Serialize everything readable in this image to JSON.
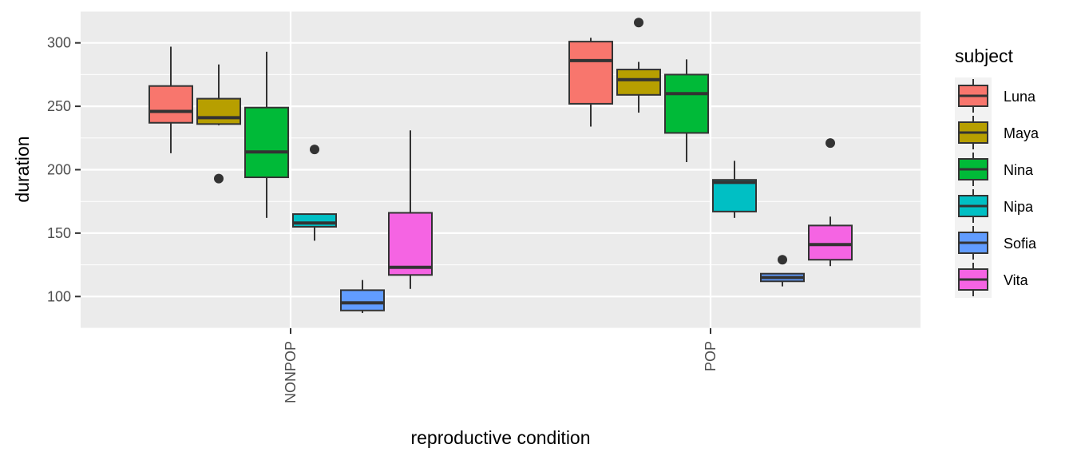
{
  "chart_data": {
    "type": "boxplot",
    "xlabel": "reproductive condition",
    "ylabel": "duration",
    "ylim": [
      75,
      325
    ],
    "yticks": [
      100,
      150,
      200,
      250,
      300
    ],
    "categories": [
      "NONPOP",
      "POP"
    ],
    "legend": {
      "title": "subject",
      "position": "right"
    },
    "series": [
      {
        "name": "Luna",
        "color": "#F8766D",
        "boxes": [
          {
            "category": "NONPOP",
            "lower_whisker": 213,
            "q1": 237,
            "median": 246,
            "q3": 266,
            "upper_whisker": 297,
            "outliers": []
          },
          {
            "category": "POP",
            "lower_whisker": 234,
            "q1": 252,
            "median": 286,
            "q3": 301,
            "upper_whisker": 304,
            "outliers": []
          }
        ]
      },
      {
        "name": "Maya",
        "color": "#B79F00",
        "boxes": [
          {
            "category": "NONPOP",
            "lower_whisker": 235,
            "q1": 236,
            "median": 241,
            "q3": 256,
            "upper_whisker": 283,
            "outliers": [
              193
            ]
          },
          {
            "category": "POP",
            "lower_whisker": 245,
            "q1": 259,
            "median": 271,
            "q3": 279,
            "upper_whisker": 285,
            "outliers": [
              316
            ]
          }
        ]
      },
      {
        "name": "Nina",
        "color": "#00BA38",
        "boxes": [
          {
            "category": "NONPOP",
            "lower_whisker": 162,
            "q1": 194,
            "median": 214,
            "q3": 249,
            "upper_whisker": 293,
            "outliers": []
          },
          {
            "category": "POP",
            "lower_whisker": 206,
            "q1": 229,
            "median": 260,
            "q3": 275,
            "upper_whisker": 287,
            "outliers": []
          }
        ]
      },
      {
        "name": "Nipa",
        "color": "#00BFC4",
        "boxes": [
          {
            "category": "NONPOP",
            "lower_whisker": 144,
            "q1": 155,
            "median": 158,
            "q3": 165,
            "upper_whisker": 165,
            "outliers": [
              216
            ]
          },
          {
            "category": "POP",
            "lower_whisker": 162,
            "q1": 167,
            "median": 190,
            "q3": 192,
            "upper_whisker": 207,
            "outliers": []
          }
        ]
      },
      {
        "name": "Sofia",
        "color": "#619CFF",
        "boxes": [
          {
            "category": "NONPOP",
            "lower_whisker": 87,
            "q1": 89,
            "median": 95,
            "q3": 105,
            "upper_whisker": 113,
            "outliers": []
          },
          {
            "category": "POP",
            "lower_whisker": 108,
            "q1": 112,
            "median": 115,
            "q3": 118,
            "upper_whisker": 118,
            "outliers": [
              129
            ]
          }
        ]
      },
      {
        "name": "Vita",
        "color": "#F564E3",
        "boxes": [
          {
            "category": "NONPOP",
            "lower_whisker": 106,
            "q1": 117,
            "median": 123,
            "q3": 166,
            "upper_whisker": 231,
            "outliers": []
          },
          {
            "category": "POP",
            "lower_whisker": 124,
            "q1": 129,
            "median": 141,
            "q3": 156,
            "upper_whisker": 163,
            "outliers": [
              221
            ]
          }
        ]
      }
    ]
  }
}
